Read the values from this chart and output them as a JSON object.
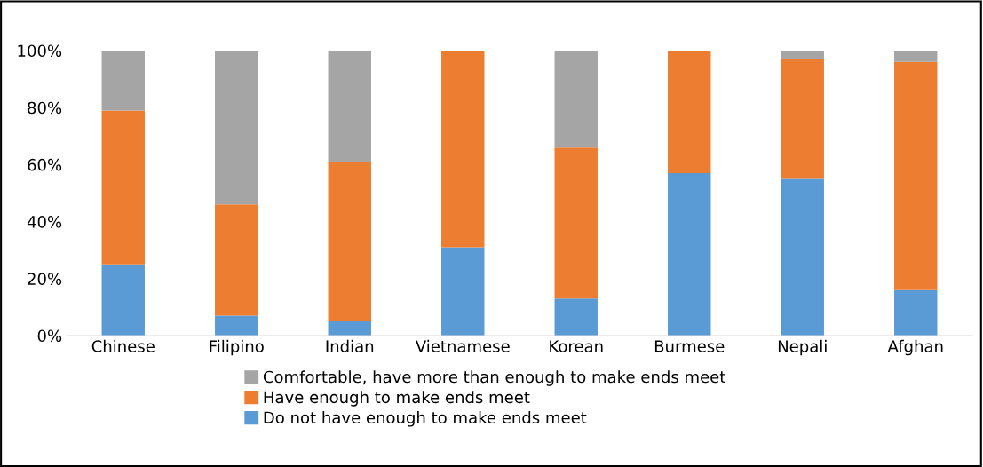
{
  "chart_data": {
    "type": "bar",
    "stacked": true,
    "categories": [
      "Chinese",
      "Filipino",
      "Indian",
      "Vietnamese",
      "Korean",
      "Burmese",
      "Nepali",
      "Afghan"
    ],
    "series": [
      {
        "name": "Do not have enough to make ends meet",
        "color": "#5b9bd5",
        "values": [
          25,
          7,
          5,
          31,
          13,
          57,
          55,
          16
        ]
      },
      {
        "name": "Have enough to make ends meet",
        "color": "#ed7d31",
        "values": [
          54,
          39,
          56,
          69,
          53,
          43,
          42,
          80
        ]
      },
      {
        "name": "Comfortable, have more than enough to make ends meet",
        "color": "#a5a5a5",
        "values": [
          21,
          54,
          39,
          0,
          34,
          0,
          3,
          4
        ]
      }
    ],
    "ylim": [
      0,
      100
    ],
    "yticks": [
      {
        "value": 0,
        "label": "0%"
      },
      {
        "value": 20,
        "label": "20%"
      },
      {
        "value": 40,
        "label": "40%"
      },
      {
        "value": 60,
        "label": "60%"
      },
      {
        "value": 80,
        "label": "80%"
      },
      {
        "value": 100,
        "label": "100%"
      }
    ],
    "grid": false,
    "legend": "bottom"
  }
}
